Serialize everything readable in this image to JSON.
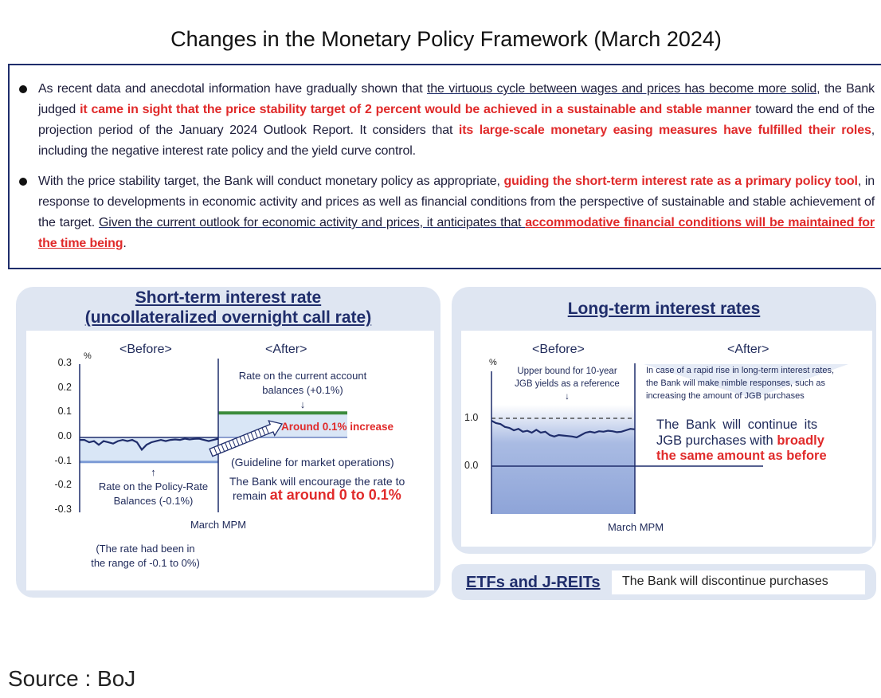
{
  "title": "Changes in the Monetary Policy Framework (March 2024)",
  "bullets": [
    [
      {
        "s": "n",
        "t": "As recent data and anecdotal information have gradually shown that "
      },
      {
        "s": "u",
        "t": "the virtuous cycle between wages and prices has become more solid"
      },
      {
        "s": "n",
        "t": ", the Bank judged "
      },
      {
        "s": "r",
        "t": "it came in sight that the price stability target of 2 percent would be achieved in a sustainable and stable manner"
      },
      {
        "s": "n",
        "t": " toward the end of the projection period of the January 2024 Outlook Report. It considers that "
      },
      {
        "s": "r",
        "t": "its large-scale monetary easing measures have fulfilled their roles"
      },
      {
        "s": "n",
        "t": ", including the negative interest rate policy and the yield curve control."
      }
    ],
    [
      {
        "s": "n",
        "t": "With the price stability target, the Bank will conduct monetary policy as appropriate, "
      },
      {
        "s": "r",
        "t": "guiding the short-term interest rate as a primary policy tool"
      },
      {
        "s": "n",
        "t": ", in response to developments in economic activity and prices as well as financial conditions from the perspective of sustainable and stable achievement of the target. "
      },
      {
        "s": "u",
        "t": "Given the current outlook for economic activity and prices, it anticipates that "
      },
      {
        "s": "ur",
        "t": "accommodative financial conditions will be maintained for the time being"
      },
      {
        "s": "n",
        "t": "."
      }
    ]
  ],
  "short_term": {
    "title_line1": "Short-term interest rate",
    "title_line2": "(uncollateralized overnight call rate)",
    "before": "<Before>",
    "after": "<After>",
    "unit": "%",
    "yticks": [
      "0.3",
      "0.2",
      "0.1",
      "0.0",
      "-0.1",
      "-0.2",
      "-0.3"
    ],
    "current_account_label_1": "Rate on the current account",
    "current_account_label_2": "balances (+0.1%)",
    "increase_label": "Around 0.1% increase",
    "guideline_label": "(Guideline for market operations)",
    "encourage_1": "The Bank will encourage the rate to",
    "encourage_2a": "remain ",
    "encourage_2b": "at around 0 to 0.1%",
    "policy_rate_label_1": "Rate on the Policy-Rate",
    "policy_rate_label_2": "Balances (-0.1%)",
    "march_mpm": "March MPM",
    "range_note_1": "(The rate had been in",
    "range_note_2": "the range of -0.1 to 0%)",
    "series_before": [
      -0.01,
      -0.01,
      -0.02,
      -0.015,
      -0.03,
      -0.015,
      -0.02,
      -0.025,
      -0.015,
      -0.01,
      -0.015,
      -0.01,
      -0.02,
      -0.05,
      -0.03,
      -0.02,
      -0.015,
      -0.01,
      -0.015,
      -0.01,
      -0.008,
      -0.01,
      -0.005,
      -0.008,
      -0.006,
      -0.005,
      -0.01,
      -0.015,
      -0.01,
      -0.005
    ],
    "policy_rate": -0.1,
    "current_account_rate": 0.1,
    "colors": {
      "green": "#3c8c3c",
      "fill": "#d9e6f6",
      "line": "#1f2d6b",
      "band": "#7c9bd6"
    }
  },
  "long_term": {
    "title": "Long-term interest rates",
    "before": "<Before>",
    "after": "<After>",
    "unit": "%",
    "yticks": [
      "1.0",
      "0.0"
    ],
    "upper_bound_1": "Upper bound for 10-year",
    "upper_bound_2": "JGB yields as a reference",
    "nimble_1": "In case of a rapid rise in long-term interest rates,",
    "nimble_2": "the Bank will make nimble responses, such as",
    "nimble_3": "increasing the amount of JGB purchases",
    "continue_1": "The Bank will continue its",
    "continue_2a": "JGB purchases with ",
    "continue_2b": "broadly",
    "continue_3": "the same amount as before",
    "march_mpm": "March MPM",
    "upper_bound": 1.0,
    "series_before": [
      0.95,
      0.9,
      0.88,
      0.82,
      0.8,
      0.75,
      0.78,
      0.72,
      0.74,
      0.7,
      0.76,
      0.7,
      0.72,
      0.65,
      0.62,
      0.65,
      0.64,
      0.63,
      0.62,
      0.6,
      0.65,
      0.7,
      0.72,
      0.7,
      0.73,
      0.72,
      0.74,
      0.73,
      0.71,
      0.72,
      0.75,
      0.78,
      0.77
    ],
    "colors": {
      "fill": "#8ea4d8",
      "line": "#1f2d6b"
    }
  },
  "etf": {
    "title": "ETFs and J-REITs",
    "text": "The Bank will discontinue purchases"
  },
  "source": "Source : BoJ"
}
